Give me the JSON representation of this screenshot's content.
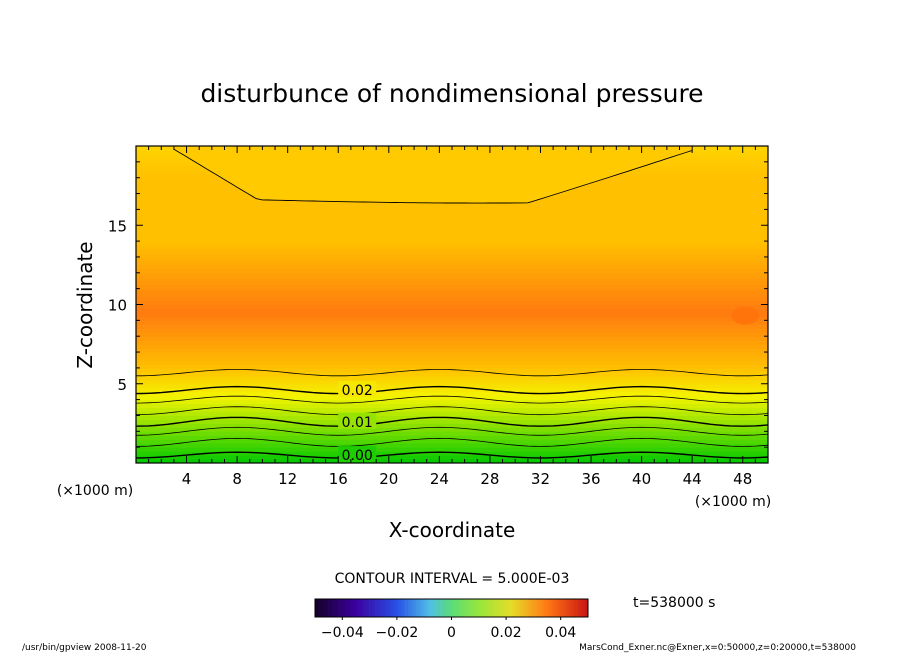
{
  "chart_data": {
    "type": "contour",
    "title": "disturbunce of nondimensional pressure",
    "xlabel": "X-coordinate",
    "ylabel": "Z-coordinate",
    "x_unit": "(×1000 m)",
    "y_unit": "(×1000 m)",
    "xlim": [
      0,
      50
    ],
    "ylim": [
      0,
      20
    ],
    "xticks": [
      4,
      8,
      12,
      16,
      20,
      24,
      28,
      32,
      36,
      40,
      44,
      48
    ],
    "yticks": [
      5,
      10,
      15
    ],
    "contour_interval_label": "CONTOUR INTERVAL = 5.000E-03",
    "contour_labels": [
      {
        "text": "0.02",
        "x": 17.5,
        "z": 4.6
      },
      {
        "text": "0.01",
        "x": 17.5,
        "z": 2.6
      },
      {
        "text": "0.00",
        "x": 17.5,
        "z": 0.5
      }
    ],
    "time_label": "t=538000 s",
    "colorbar": {
      "min": -0.05,
      "max": 0.05,
      "ticks": [
        {
          "value": -0.04,
          "label": "−0.04"
        },
        {
          "value": -0.02,
          "label": "−0.02"
        },
        {
          "value": 0,
          "label": "0"
        },
        {
          "value": 0.02,
          "label": "0.02"
        },
        {
          "value": 0.04,
          "label": "0.04"
        }
      ]
    },
    "colors": {
      "low": "#00c800",
      "mid": "#f4f400",
      "high": "#ffc000",
      "max": "#ff7a10"
    }
  },
  "footer": {
    "left": "/usr/bin/gpview   2008-11-20",
    "right": "MarsCond_Exner.nc@Exner,x=0:50000,z=0:20000,t=538000"
  }
}
